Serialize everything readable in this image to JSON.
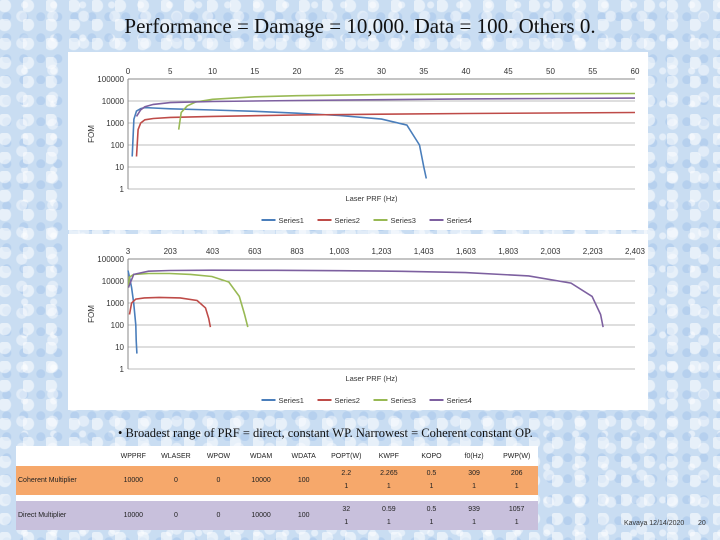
{
  "slide": {
    "title": "Performance = Damage = 10,000. Data = 100. Others 0.",
    "bullet": "• Broadest range of PRF = direct, constant WP. Narrowest = Coherent constant OP.",
    "footer_date": "Kavaya 12/14/2020",
    "footer_page": "20"
  },
  "chart_data": [
    {
      "type": "line",
      "title": "",
      "xlabel": "Laser PRF (Hz)",
      "ylabel": "FOM",
      "y_log": true,
      "ylim": [
        1,
        100000
      ],
      "y_ticks": [
        "1",
        "10",
        "100",
        "1000",
        "10000",
        "100000"
      ],
      "xlim": [
        0,
        60
      ],
      "x_ticks": [
        "0",
        "5",
        "10",
        "15",
        "20",
        "25",
        "30",
        "35",
        "40",
        "45",
        "50",
        "55",
        "60"
      ],
      "x_tick_values": [
        0,
        5,
        10,
        15,
        20,
        25,
        30,
        35,
        40,
        45,
        50,
        55,
        60
      ],
      "grid": true,
      "legend_position": "bottom",
      "series": [
        {
          "name": "Series1",
          "color": "#4a7ebb",
          "x": [
            0.5,
            0.7,
            1,
            1.5,
            2,
            3,
            5,
            10,
            15,
            20,
            25,
            30,
            33,
            34.5,
            35,
            35.3
          ],
          "y": [
            30,
            1500,
            3500,
            4500,
            5000,
            4800,
            4400,
            3900,
            3400,
            2800,
            2200,
            1500,
            800,
            100,
            10,
            3
          ]
        },
        {
          "name": "Series2",
          "color": "#be4b48",
          "x": [
            1,
            1.2,
            1.5,
            2,
            3,
            5,
            10,
            20,
            30,
            40,
            50,
            60
          ],
          "y": [
            30,
            500,
            1000,
            1400,
            1600,
            1800,
            2000,
            2300,
            2500,
            2700,
            2850,
            3000
          ]
        },
        {
          "name": "Series3",
          "color": "#98b954",
          "x": [
            6,
            6.3,
            7,
            8,
            10,
            15,
            20,
            30,
            40,
            50,
            60
          ],
          "y": [
            500,
            3000,
            6000,
            9000,
            12000,
            15500,
            17500,
            19500,
            20500,
            21500,
            22000
          ]
        },
        {
          "name": "Series4",
          "color": "#7d60a0",
          "x": [
            1,
            1.5,
            2,
            3,
            5,
            10,
            20,
            30,
            40,
            50,
            60
          ],
          "y": [
            2000,
            4000,
            5500,
            7000,
            8500,
            9500,
            10500,
            11500,
            12500,
            13000,
            13500
          ]
        }
      ]
    },
    {
      "type": "line",
      "title": "",
      "xlabel": "Laser PRF (Hz)",
      "ylabel": "FOM",
      "y_log": true,
      "ylim": [
        1,
        100000
      ],
      "y_ticks": [
        "1",
        "10",
        "100",
        "1000",
        "10000",
        "100000"
      ],
      "xlim": [
        3,
        2403
      ],
      "x_ticks": [
        "3",
        "203",
        "403",
        "603",
        "803",
        "1,003",
        "1,203",
        "1,403",
        "1,603",
        "1,803",
        "2,003",
        "2,203",
        "2,403"
      ],
      "x_tick_values": [
        3,
        203,
        403,
        603,
        803,
        1003,
        1203,
        1403,
        1603,
        1803,
        2003,
        2203,
        2403
      ],
      "grid": true,
      "legend_position": "bottom",
      "series": [
        {
          "name": "Series1",
          "color": "#4a7ebb",
          "x": [
            3,
            10,
            20,
            30,
            40,
            42,
            45
          ],
          "y": [
            30000,
            15000,
            5000,
            1000,
            100,
            20,
            5
          ]
        },
        {
          "name": "Series2",
          "color": "#be4b48",
          "x": [
            10,
            20,
            40,
            80,
            150,
            250,
            330,
            370,
            385,
            393
          ],
          "y": [
            300,
            1000,
            1500,
            1700,
            1800,
            1700,
            1300,
            600,
            200,
            80
          ]
        },
        {
          "name": "Series3",
          "color": "#98b954",
          "x": [
            5,
            10,
            30,
            100,
            200,
            300,
            400,
            480,
            530,
            555,
            570
          ],
          "y": [
            5000,
            15000,
            20000,
            22000,
            22000,
            20000,
            16000,
            9000,
            2000,
            300,
            80
          ]
        },
        {
          "name": "Series4",
          "color": "#7d60a0",
          "x": [
            5,
            30,
            100,
            200,
            400,
            700,
            1000,
            1300,
            1600,
            1900,
            2100,
            2200,
            2240,
            2252
          ],
          "y": [
            5000,
            20000,
            28000,
            30000,
            31000,
            30500,
            29500,
            27500,
            24000,
            17000,
            8000,
            2000,
            300,
            80
          ]
        }
      ]
    }
  ],
  "table": {
    "headers": [
      "",
      "WPPRF",
      "WLASER",
      "WPOW",
      "WDAM",
      "WDATA",
      "POPT(W)",
      "KWPF",
      "KOPO",
      "f0(Hz)",
      "PWP(W)"
    ],
    "rows": [
      {
        "label": "Coherent Multiplier",
        "cells": [
          [
            "10000"
          ],
          [
            "0"
          ],
          [
            "0"
          ],
          [
            "10000"
          ],
          [
            "100"
          ],
          [
            "2.2",
            "1"
          ],
          [
            "2.265",
            "1"
          ],
          [
            "0.5",
            "1"
          ],
          [
            "309",
            "1"
          ],
          [
            "206",
            "1"
          ]
        ]
      },
      {
        "label": "Direct Multiplier",
        "cells": [
          [
            "10000"
          ],
          [
            "0"
          ],
          [
            "0"
          ],
          [
            "10000"
          ],
          [
            "100"
          ],
          [
            "32",
            "1"
          ],
          [
            "0.59",
            "1"
          ],
          [
            "0.5",
            "1"
          ],
          [
            "939",
            "1"
          ],
          [
            "1057",
            "1"
          ]
        ]
      }
    ]
  }
}
